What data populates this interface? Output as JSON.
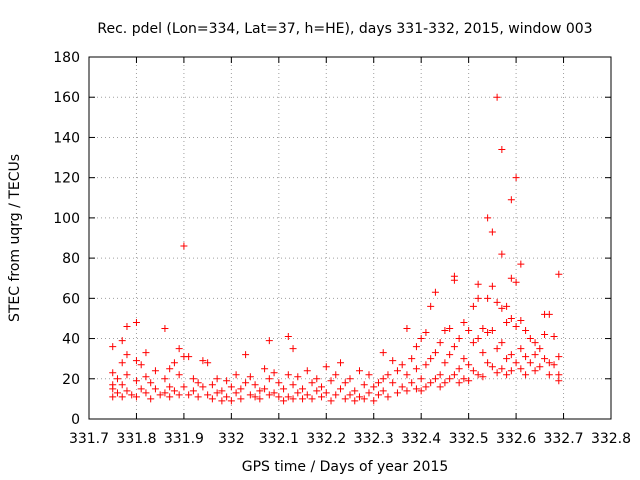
{
  "chart_data": {
    "type": "scatter",
    "title": "Rec. pdel (Lon=334, Lat=37, h=HE), days 331-332, 2015, window 003",
    "xlabel": "GPS time / Days of year 2015",
    "ylabel": "STEC from uqrg / TECUs",
    "xlim": [
      331.7,
      332.8
    ],
    "ylim": [
      0,
      180
    ],
    "xticks": [
      "331.7",
      "331.8",
      "331.9",
      "332",
      "332.1",
      "332.2",
      "332.3",
      "332.4",
      "332.5",
      "332.6",
      "332.7",
      "332.8"
    ],
    "yticks": [
      "0",
      "20",
      "40",
      "60",
      "80",
      "100",
      "120",
      "140",
      "160",
      "180"
    ],
    "grid": true,
    "marker": "+",
    "color": "#ff0000",
    "series": [
      {
        "points": [
          [
            331.75,
            36
          ],
          [
            331.75,
            23
          ],
          [
            331.75,
            17
          ],
          [
            331.75,
            15
          ],
          [
            331.75,
            11
          ],
          [
            331.76,
            20
          ],
          [
            331.76,
            13
          ],
          [
            331.77,
            39
          ],
          [
            331.77,
            28
          ],
          [
            331.77,
            17
          ],
          [
            331.77,
            11
          ],
          [
            331.78,
            46
          ],
          [
            331.78,
            32
          ],
          [
            331.78,
            22
          ],
          [
            331.78,
            14
          ],
          [
            331.79,
            12
          ],
          [
            331.8,
            48
          ],
          [
            331.8,
            29
          ],
          [
            331.8,
            19
          ],
          [
            331.8,
            11
          ],
          [
            331.81,
            27
          ],
          [
            331.81,
            15
          ],
          [
            331.82,
            33
          ],
          [
            331.82,
            21
          ],
          [
            331.82,
            13
          ],
          [
            331.83,
            18
          ],
          [
            331.83,
            10
          ],
          [
            331.84,
            24
          ],
          [
            331.84,
            15
          ],
          [
            331.85,
            12
          ],
          [
            331.86,
            45
          ],
          [
            331.86,
            20
          ],
          [
            331.86,
            13
          ],
          [
            331.87,
            25
          ],
          [
            331.87,
            16
          ],
          [
            331.87,
            11
          ],
          [
            331.88,
            28
          ],
          [
            331.88,
            14
          ],
          [
            331.89,
            35
          ],
          [
            331.89,
            22
          ],
          [
            331.89,
            12
          ],
          [
            331.9,
            86
          ],
          [
            331.9,
            31
          ],
          [
            331.9,
            16
          ],
          [
            331.91,
            31
          ],
          [
            331.91,
            12
          ],
          [
            331.92,
            20
          ],
          [
            331.92,
            14
          ],
          [
            331.93,
            18
          ],
          [
            331.93,
            11
          ],
          [
            331.94,
            29
          ],
          [
            331.94,
            16
          ],
          [
            331.95,
            28
          ],
          [
            331.95,
            12
          ],
          [
            331.96,
            17
          ],
          [
            331.96,
            10
          ],
          [
            331.97,
            20
          ],
          [
            331.97,
            13
          ],
          [
            331.98,
            14
          ],
          [
            331.98,
            9
          ],
          [
            331.99,
            19
          ],
          [
            331.99,
            11
          ],
          [
            332.0,
            16
          ],
          [
            332.0,
            9
          ],
          [
            332.01,
            22
          ],
          [
            332.01,
            13
          ],
          [
            332.02,
            15
          ],
          [
            332.02,
            10
          ],
          [
            332.03,
            32
          ],
          [
            332.03,
            18
          ],
          [
            332.04,
            21
          ],
          [
            332.04,
            12
          ],
          [
            332.05,
            17
          ],
          [
            332.05,
            11
          ],
          [
            332.06,
            14
          ],
          [
            332.06,
            10
          ],
          [
            332.07,
            25
          ],
          [
            332.07,
            15
          ],
          [
            332.08,
            39
          ],
          [
            332.08,
            20
          ],
          [
            332.08,
            12
          ],
          [
            332.09,
            23
          ],
          [
            332.09,
            13
          ],
          [
            332.1,
            18
          ],
          [
            332.1,
            11
          ],
          [
            332.11,
            15
          ],
          [
            332.11,
            9
          ],
          [
            332.12,
            41
          ],
          [
            332.12,
            22
          ],
          [
            332.12,
            11
          ],
          [
            332.13,
            35
          ],
          [
            332.13,
            17
          ],
          [
            332.13,
            10
          ],
          [
            332.14,
            21
          ],
          [
            332.14,
            13
          ],
          [
            332.15,
            15
          ],
          [
            332.15,
            10
          ],
          [
            332.16,
            24
          ],
          [
            332.16,
            12
          ],
          [
            332.17,
            18
          ],
          [
            332.17,
            10
          ],
          [
            332.18,
            20
          ],
          [
            332.18,
            14
          ],
          [
            332.19,
            16
          ],
          [
            332.19,
            11
          ],
          [
            332.2,
            26
          ],
          [
            332.2,
            13
          ],
          [
            332.21,
            19
          ],
          [
            332.21,
            9
          ],
          [
            332.22,
            22
          ],
          [
            332.22,
            12
          ],
          [
            332.23,
            28
          ],
          [
            332.23,
            15
          ],
          [
            332.24,
            18
          ],
          [
            332.24,
            10
          ],
          [
            332.25,
            20
          ],
          [
            332.25,
            12
          ],
          [
            332.26,
            14
          ],
          [
            332.26,
            9
          ],
          [
            332.27,
            24
          ],
          [
            332.27,
            11
          ],
          [
            332.28,
            17
          ],
          [
            332.28,
            10
          ],
          [
            332.29,
            22
          ],
          [
            332.29,
            13
          ],
          [
            332.3,
            16
          ],
          [
            332.3,
            9
          ],
          [
            332.31,
            18
          ],
          [
            332.31,
            12
          ],
          [
            332.32,
            33
          ],
          [
            332.32,
            20
          ],
          [
            332.32,
            14
          ],
          [
            332.33,
            22
          ],
          [
            332.33,
            11
          ],
          [
            332.34,
            29
          ],
          [
            332.34,
            18
          ],
          [
            332.35,
            24
          ],
          [
            332.35,
            13
          ],
          [
            332.36,
            27
          ],
          [
            332.36,
            16
          ],
          [
            332.37,
            45
          ],
          [
            332.37,
            22
          ],
          [
            332.37,
            14
          ],
          [
            332.38,
            30
          ],
          [
            332.38,
            18
          ],
          [
            332.39,
            36
          ],
          [
            332.39,
            25
          ],
          [
            332.39,
            15
          ],
          [
            332.4,
            40
          ],
          [
            332.4,
            20
          ],
          [
            332.4,
            14
          ],
          [
            332.41,
            43
          ],
          [
            332.41,
            27
          ],
          [
            332.41,
            16
          ],
          [
            332.42,
            56
          ],
          [
            332.42,
            30
          ],
          [
            332.42,
            18
          ],
          [
            332.43,
            63
          ],
          [
            332.43,
            33
          ],
          [
            332.43,
            20
          ],
          [
            332.44,
            38
          ],
          [
            332.44,
            22
          ],
          [
            332.44,
            16
          ],
          [
            332.45,
            44
          ],
          [
            332.45,
            28
          ],
          [
            332.45,
            18
          ],
          [
            332.46,
            45
          ],
          [
            332.46,
            32
          ],
          [
            332.46,
            20
          ],
          [
            332.47,
            71
          ],
          [
            332.47,
            69
          ],
          [
            332.47,
            36
          ],
          [
            332.47,
            22
          ],
          [
            332.48,
            40
          ],
          [
            332.48,
            25
          ],
          [
            332.48,
            18
          ],
          [
            332.49,
            48
          ],
          [
            332.49,
            30
          ],
          [
            332.49,
            20
          ],
          [
            332.5,
            44
          ],
          [
            332.5,
            27
          ],
          [
            332.5,
            19
          ],
          [
            332.51,
            56
          ],
          [
            332.51,
            38
          ],
          [
            332.51,
            24
          ],
          [
            332.52,
            67
          ],
          [
            332.52,
            60
          ],
          [
            332.52,
            40
          ],
          [
            332.52,
            22
          ],
          [
            332.53,
            45
          ],
          [
            332.53,
            33
          ],
          [
            332.53,
            21
          ],
          [
            332.54,
            100
          ],
          [
            332.54,
            60
          ],
          [
            332.54,
            43
          ],
          [
            332.54,
            28
          ],
          [
            332.55,
            93
          ],
          [
            332.55,
            66
          ],
          [
            332.55,
            44
          ],
          [
            332.55,
            26
          ],
          [
            332.56,
            160
          ],
          [
            332.56,
            58
          ],
          [
            332.56,
            35
          ],
          [
            332.56,
            23
          ],
          [
            332.57,
            134
          ],
          [
            332.57,
            82
          ],
          [
            332.57,
            55
          ],
          [
            332.57,
            38
          ],
          [
            332.57,
            25
          ],
          [
            332.58,
            56
          ],
          [
            332.58,
            48
          ],
          [
            332.58,
            30
          ],
          [
            332.58,
            22
          ],
          [
            332.59,
            109
          ],
          [
            332.59,
            70
          ],
          [
            332.59,
            50
          ],
          [
            332.59,
            32
          ],
          [
            332.59,
            24
          ],
          [
            332.6,
            120
          ],
          [
            332.6,
            68
          ],
          [
            332.6,
            46
          ],
          [
            332.6,
            28
          ],
          [
            332.61,
            77
          ],
          [
            332.61,
            49
          ],
          [
            332.61,
            35
          ],
          [
            332.61,
            25
          ],
          [
            332.62,
            44
          ],
          [
            332.62,
            31
          ],
          [
            332.62,
            22
          ],
          [
            332.63,
            40
          ],
          [
            332.63,
            28
          ],
          [
            332.64,
            38
          ],
          [
            332.64,
            32
          ],
          [
            332.64,
            24
          ],
          [
            332.65,
            35
          ],
          [
            332.65,
            26
          ],
          [
            332.66,
            52
          ],
          [
            332.66,
            42
          ],
          [
            332.66,
            30
          ],
          [
            332.67,
            52
          ],
          [
            332.67,
            28
          ],
          [
            332.67,
            22
          ],
          [
            332.68,
            41
          ],
          [
            332.68,
            27
          ],
          [
            332.69,
            72
          ],
          [
            332.69,
            31
          ],
          [
            332.69,
            22
          ],
          [
            332.69,
            19
          ]
        ]
      }
    ]
  }
}
